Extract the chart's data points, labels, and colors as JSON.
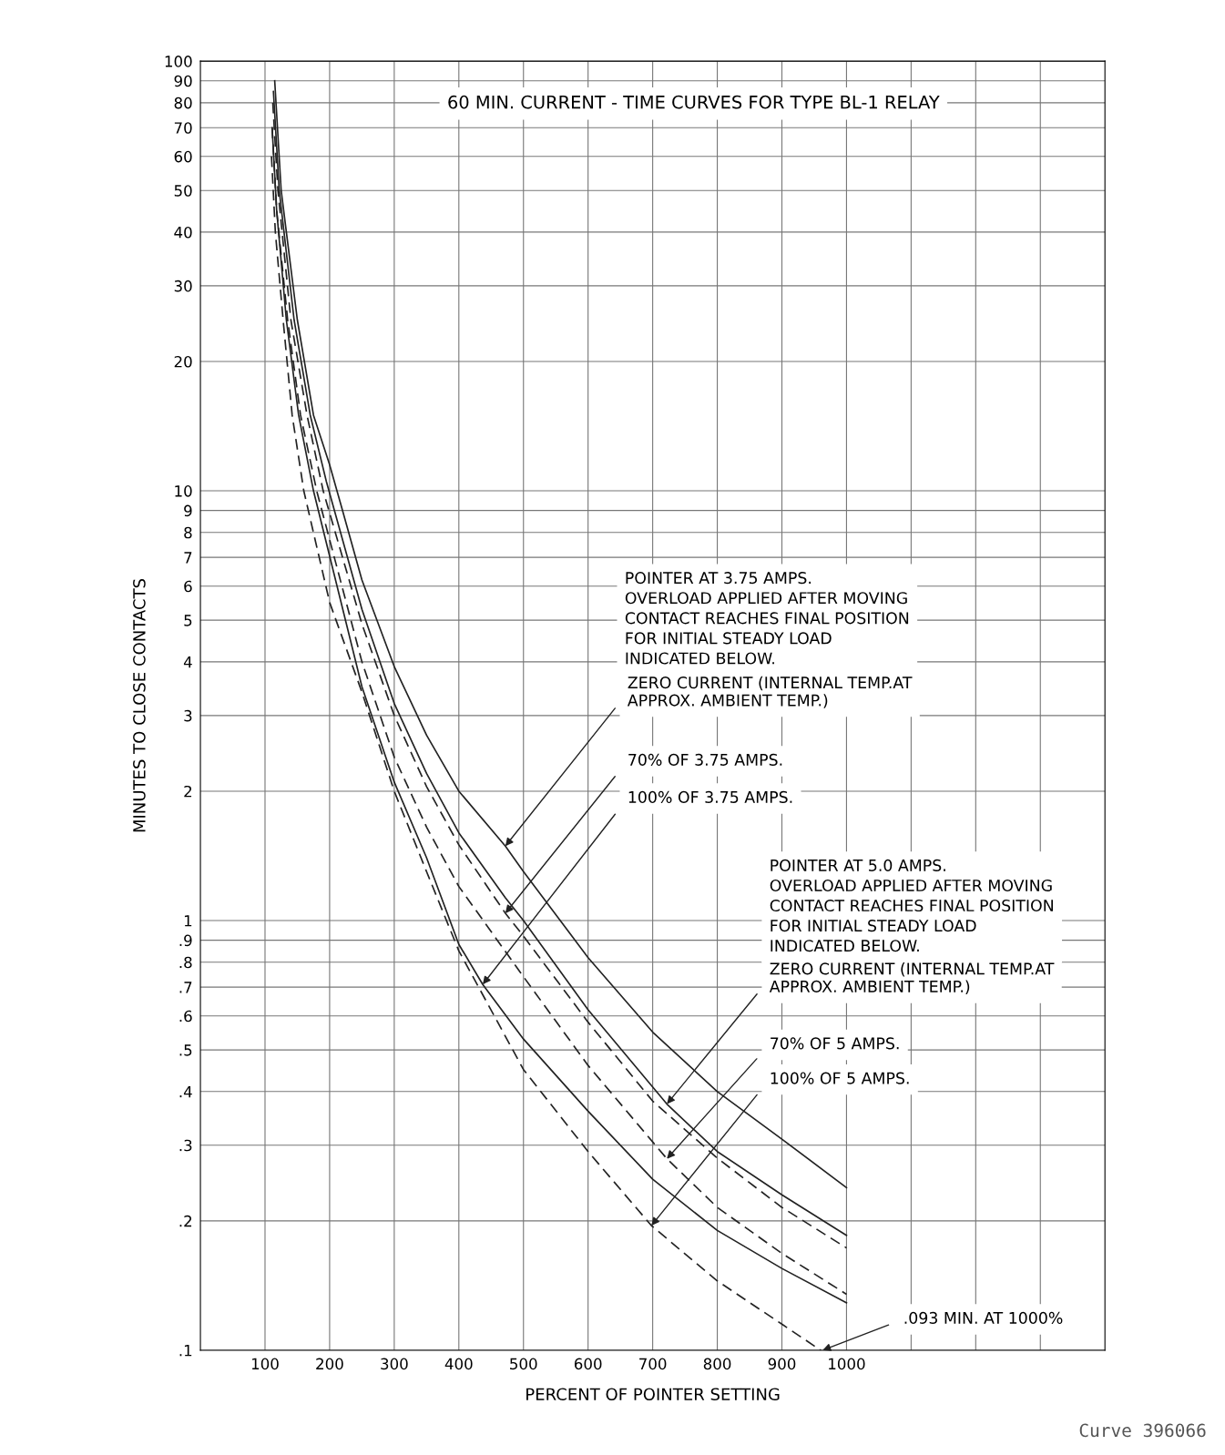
{
  "chart_data": {
    "type": "line",
    "title": "60 MIN. CURRENT - TIME CURVES FOR TYPE BL-1 RELAY",
    "xlabel": "PERCENT OF POINTER SETTING",
    "ylabel": "MINUTES TO CLOSE CONTACTS",
    "log": "y",
    "grid": true,
    "marker": "none",
    "xlim": [
      0,
      1400
    ],
    "ylim": [
      0.1,
      100
    ],
    "xticks": [
      100,
      200,
      300,
      400,
      500,
      600,
      700,
      800,
      900,
      1000,
      {
        "value": 1100,
        "label": null
      },
      {
        "value": 1200,
        "label": null
      },
      {
        "value": 1300,
        "label": null
      }
    ],
    "yticks": [
      {
        "value": 0.1,
        "label": ".1"
      },
      {
        "value": 0.2,
        "label": ".2"
      },
      {
        "value": 0.3,
        "label": ".3"
      },
      {
        "value": 0.4,
        "label": ".4"
      },
      {
        "value": 0.5,
        "label": ".5"
      },
      {
        "value": 0.6,
        "label": ".6"
      },
      {
        "value": 0.7,
        "label": ".7"
      },
      {
        "value": 0.8,
        "label": ".8"
      },
      {
        "value": 0.9,
        "label": ".9"
      },
      1,
      2,
      3,
      4,
      5,
      6,
      7,
      8,
      9,
      10,
      20,
      30,
      40,
      50,
      60,
      70,
      80,
      90,
      100
    ],
    "series": [
      {
        "color": "#222222",
        "line_style": "solid",
        "x": [
          115,
          125,
          150,
          175,
          200,
          220,
          250,
          300,
          350,
          400,
          472,
          500,
          600,
          700,
          800,
          900,
          1000
        ],
        "values": [
          90,
          50,
          25,
          15,
          11.5,
          9,
          6.2,
          3.9,
          2.7,
          2.0,
          1.49,
          1.3,
          0.82,
          0.55,
          0.4,
          0.31,
          0.239
        ]
      },
      {
        "color": "#222222",
        "line_style": "solid",
        "x": [
          113,
          122,
          145,
          170,
          195,
          250,
          300,
          350,
          400,
          472,
          500,
          600,
          722,
          800,
          900,
          1000
        ],
        "values": [
          85,
          50,
          25,
          15,
          10.5,
          5.3,
          3.2,
          2.2,
          1.6,
          1.13,
          1.0,
          0.62,
          0.374,
          0.29,
          0.23,
          0.185
        ]
      },
      {
        "color": "#222222",
        "line_style": "dashed",
        "x": [
          112,
          120,
          140,
          165,
          190,
          250,
          300,
          350,
          400,
          472,
          500,
          600,
          700,
          800,
          900,
          1000
        ],
        "values": [
          80,
          50,
          25,
          15,
          10,
          4.9,
          3.0,
          2.05,
          1.5,
          1.04,
          0.92,
          0.58,
          0.38,
          0.28,
          0.215,
          0.173
        ]
      },
      {
        "color": "#222222",
        "line_style": "dashed",
        "x": [
          111,
          118,
          135,
          155,
          180,
          250,
          300,
          350,
          400,
          500,
          600,
          722,
          800,
          900,
          1000
        ],
        "values": [
          70,
          45,
          25,
          15,
          10,
          4.0,
          2.4,
          1.65,
          1.2,
          0.74,
          0.46,
          0.279,
          0.215,
          0.168,
          0.135
        ]
      },
      {
        "color": "#222222",
        "line_style": "solid",
        "x": [
          111,
          118,
          133,
          152,
          175,
          250,
          300,
          350,
          400,
          437,
          500,
          600,
          700,
          800,
          900,
          1000
        ],
        "values": [
          70,
          45,
          25,
          15,
          10,
          3.5,
          2.1,
          1.4,
          0.88,
          0.71,
          0.53,
          0.36,
          0.25,
          0.19,
          0.155,
          0.129
        ]
      },
      {
        "color": "#222222",
        "line_style": "dashed",
        "x": [
          110,
          116,
          128,
          142,
          160,
          200,
          250,
          300,
          350,
          400,
          500,
          600,
          698,
          800,
          900,
          960
        ],
        "values": [
          60,
          40,
          25,
          15,
          10,
          5.5,
          3.4,
          2.0,
          1.3,
          0.85,
          0.45,
          0.29,
          0.195,
          0.145,
          0.115,
          0.1
        ]
      }
    ],
    "annotations": [
      "POINTER AT 3.75 AMPS.\nOVERLOAD APPLIED AFTER MOVING\nCONTACT REACHES FINAL POSITION\nFOR INITIAL STEADY LOAD\nINDICATED BELOW.",
      {
        "text": "ZERO CURRENT (INTERNAL TEMP.AT\nAPPROX. AMBIENT TEMP.)",
        "x": 472,
        "y": 1.49
      },
      {
        "text": "70% OF 3.75 AMPS.",
        "x": 472,
        "y": 1.04
      },
      {
        "text": "100% OF 3.75 AMPS.",
        "x": 437,
        "y": 0.71
      },
      "POINTER AT 5.0 AMPS.\nOVERLOAD APPLIED AFTER MOVING\nCONTACT REACHES FINAL POSITION\nFOR INITIAL STEADY LOAD\nINDICATED BELOW.",
      {
        "text": "ZERO CURRENT (INTERNAL TEMP.AT\nAPPROX. AMBIENT TEMP.)",
        "x": 722,
        "y": 0.374
      },
      {
        "text": "70% OF 5 AMPS.",
        "x": 722,
        "y": 0.279
      },
      {
        "text": "100% OF 5 AMPS.",
        "x": 698,
        "y": 0.195
      },
      {
        "text": ".093 MIN. AT 1000%",
        "x": 963,
        "y": 0.1
      },
      "Curve 396066"
    ]
  }
}
